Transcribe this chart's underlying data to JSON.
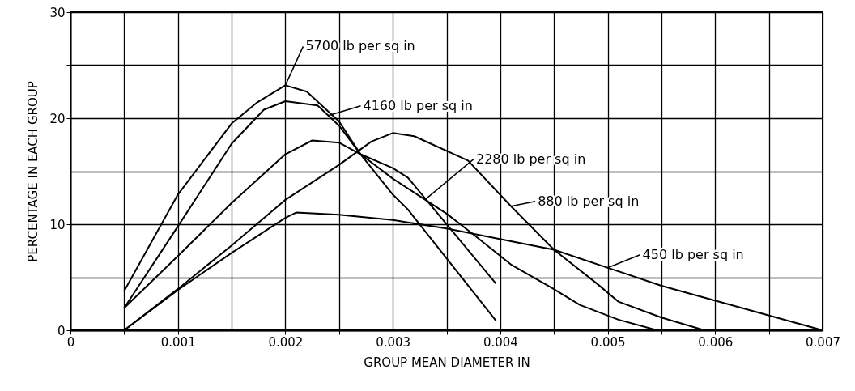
{
  "chart_data": {
    "type": "line",
    "xlabel": "GROUP MEAN DIAMETER IN",
    "ylabel": "PERCENTAGE IN EACH GROUP",
    "xlim": [
      0,
      0.007
    ],
    "ylim": [
      0,
      30
    ],
    "xticks": [
      0,
      {
        "value": 0.0005,
        "label": null
      },
      0.001,
      {
        "value": 0.0015,
        "label": null
      },
      0.002,
      {
        "value": 0.0025,
        "label": null
      },
      0.003,
      {
        "value": 0.0035,
        "label": null
      },
      0.004,
      {
        "value": 0.0045,
        "label": null
      },
      0.005,
      {
        "value": 0.0055,
        "label": null
      },
      0.006,
      {
        "value": 0.0065,
        "label": null
      },
      0.007
    ],
    "yticks": [
      0,
      {
        "value": 5,
        "label": null
      },
      10,
      {
        "value": 15,
        "label": null
      },
      20,
      {
        "value": 25,
        "label": null
      },
      30
    ],
    "grid": true,
    "marker": "none",
    "line_style": "solid",
    "series": [
      {
        "color": "#000000",
        "x": [
          0.0005,
          0.001,
          0.0015,
          0.00174,
          0.002,
          0.0022,
          0.0025,
          0.0027,
          0.003,
          0.00314,
          0.00396
        ],
        "values": [
          3.7,
          12.8,
          19.5,
          21.5,
          23.1,
          22.5,
          19.7,
          16.6,
          12.8,
          11.4,
          0.9
        ]
      },
      {
        "color": "#000000",
        "x": [
          0.0005,
          0.001,
          0.0015,
          0.0018,
          0.002,
          0.0023,
          0.0025,
          0.0027,
          0.003,
          0.00314,
          0.00396
        ],
        "values": [
          2.1,
          9.8,
          17.6,
          20.8,
          21.6,
          21.2,
          19.3,
          16.6,
          15.3,
          14.4,
          4.4
        ]
      },
      {
        "color": "#000000",
        "x": [
          0.0005,
          0.001,
          0.0015,
          0.002,
          0.00225,
          0.0025,
          0.0027,
          0.003,
          0.0035,
          0.00373,
          0.0041,
          0.00448,
          0.00474,
          0.0051,
          0.00546
        ],
        "values": [
          2.1,
          7.0,
          12.0,
          16.6,
          17.9,
          17.7,
          16.6,
          14.3,
          11.0,
          9.2,
          6.2,
          4.0,
          2.4,
          1.0,
          0
        ]
      },
      {
        "color": "#000000",
        "x": [
          0.0005,
          0.001,
          0.0015,
          0.002,
          0.0025,
          0.0028,
          0.003,
          0.0032,
          0.0037,
          0.0041,
          0.0045,
          0.0049,
          0.0051,
          0.0055,
          0.0059
        ],
        "values": [
          0,
          3.9,
          8.0,
          12.3,
          15.6,
          17.8,
          18.6,
          18.3,
          16.0,
          11.7,
          7.6,
          4.4,
          2.7,
          1.2,
          0
        ]
      },
      {
        "color": "#000000",
        "x": [
          0.0005,
          0.001,
          0.0015,
          0.002,
          0.0021,
          0.0025,
          0.003,
          0.0035,
          0.0045,
          0.0055,
          0.007
        ],
        "values": [
          0,
          3.8,
          7.3,
          10.6,
          11.1,
          10.9,
          10.4,
          9.6,
          7.6,
          4.2,
          0
        ]
      }
    ],
    "annotations": [
      {
        "text": "5700 lb per sq in",
        "x": 0.002,
        "y": 23.1
      },
      {
        "text": "4160 lb per sq in",
        "x": 0.0024,
        "y": 20.25
      },
      {
        "text": "2280 lb per sq in",
        "x": 0.0033,
        "y": 12.32
      },
      {
        "text": "880 lb per sq in",
        "x": 0.0041,
        "y": 11.7
      },
      {
        "text": "450 lb per sq in",
        "x": 0.005,
        "y": 5.9
      }
    ]
  }
}
